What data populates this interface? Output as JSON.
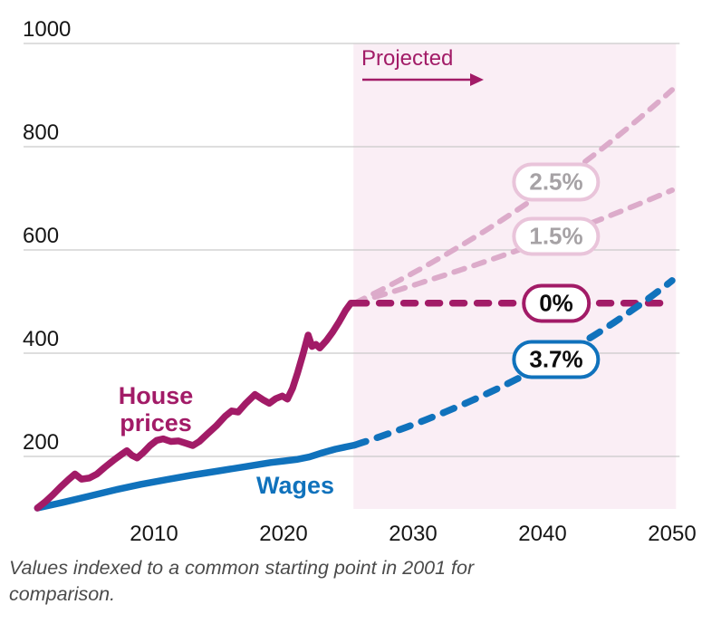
{
  "caption": {
    "line1": "Values indexed to a common starting point in 2001 for",
    "line2": "comparison."
  },
  "colors": {
    "house_magenta": "#a21b67",
    "wages_blue": "#1072bc",
    "faded_pink_line": "#dcabca",
    "faded_pill_border": "#e9c4da",
    "faded_pill_text": "#a6a2a5",
    "projection_shade_bg": "#faeef5",
    "gridline": "#c9c9c9",
    "tick_text": "#161616",
    "caption_text": "#4b4b4b"
  },
  "chart_data": {
    "type": "line",
    "projected_label": "Projected",
    "x_ticks": [
      "2010",
      "2020",
      "2030",
      "2040",
      "2050"
    ],
    "y_ticks": [
      "200",
      "400",
      "600",
      "800",
      "1000"
    ],
    "x_range": [
      2001,
      2050.3
    ],
    "y_range": [
      100,
      1000
    ],
    "grid": true,
    "projection_region_start_year": 2025.4,
    "series": [
      {
        "name": "house_prices",
        "label": "House prices",
        "color": "#a21b67",
        "points": [
          [
            2001.0,
            100
          ],
          [
            2001.6,
            112
          ],
          [
            2002.2,
            126
          ],
          [
            2002.8,
            141
          ],
          [
            2003.4,
            155
          ],
          [
            2003.9,
            166
          ],
          [
            2004.4,
            156
          ],
          [
            2005.0,
            158
          ],
          [
            2005.6,
            166
          ],
          [
            2006.2,
            179
          ],
          [
            2006.9,
            193
          ],
          [
            2007.5,
            204
          ],
          [
            2007.9,
            211
          ],
          [
            2008.3,
            202
          ],
          [
            2008.7,
            197
          ],
          [
            2009.2,
            208
          ],
          [
            2009.7,
            221
          ],
          [
            2010.2,
            231
          ],
          [
            2010.7,
            234
          ],
          [
            2011.3,
            229
          ],
          [
            2011.9,
            230
          ],
          [
            2012.4,
            226
          ],
          [
            2013.0,
            221
          ],
          [
            2013.5,
            229
          ],
          [
            2014.1,
            243
          ],
          [
            2014.8,
            259
          ],
          [
            2015.5,
            278
          ],
          [
            2016.0,
            288
          ],
          [
            2016.5,
            286
          ],
          [
            2017.1,
            303
          ],
          [
            2017.8,
            320
          ],
          [
            2018.4,
            310
          ],
          [
            2018.9,
            303
          ],
          [
            2019.4,
            312
          ],
          [
            2019.9,
            317
          ],
          [
            2020.3,
            311
          ],
          [
            2020.7,
            332
          ],
          [
            2021.1,
            363
          ],
          [
            2021.5,
            398
          ],
          [
            2021.9,
            435
          ],
          [
            2022.2,
            413
          ],
          [
            2022.5,
            417
          ],
          [
            2022.8,
            410
          ],
          [
            2023.3,
            424
          ],
          [
            2023.8,
            441
          ],
          [
            2024.3,
            461
          ],
          [
            2024.8,
            483
          ],
          [
            2025.2,
            497
          ],
          [
            2025.5,
            497
          ]
        ]
      },
      {
        "name": "wages",
        "label": "Wages",
        "color": "#1072bc",
        "points": [
          [
            2001.0,
            100
          ],
          [
            2003.0,
            111
          ],
          [
            2005.0,
            123
          ],
          [
            2007.0,
            135
          ],
          [
            2009.0,
            146
          ],
          [
            2011.0,
            155
          ],
          [
            2013.0,
            164
          ],
          [
            2015.0,
            172
          ],
          [
            2017.0,
            180
          ],
          [
            2019.0,
            188
          ],
          [
            2020.0,
            191
          ],
          [
            2021.0,
            194
          ],
          [
            2022.0,
            199
          ],
          [
            2023.0,
            207
          ],
          [
            2024.0,
            214
          ],
          [
            2025.5,
            222
          ]
        ]
      }
    ],
    "projections": [
      {
        "label": "2.5%",
        "series": "house_prices",
        "annual_growth_pct": 2.5,
        "end_value_2050": 907,
        "style": "faded"
      },
      {
        "label": "1.5%",
        "series": "house_prices",
        "annual_growth_pct": 1.5,
        "end_value_2050": 712,
        "style": "faded"
      },
      {
        "label": "0%",
        "series": "house_prices",
        "annual_growth_pct": 0.0,
        "end_value_2050": 497,
        "style": "magenta"
      },
      {
        "label": "3.7%",
        "series": "wages",
        "annual_growth_pct": 3.7,
        "end_value_2050": 543,
        "style": "blue"
      }
    ]
  }
}
